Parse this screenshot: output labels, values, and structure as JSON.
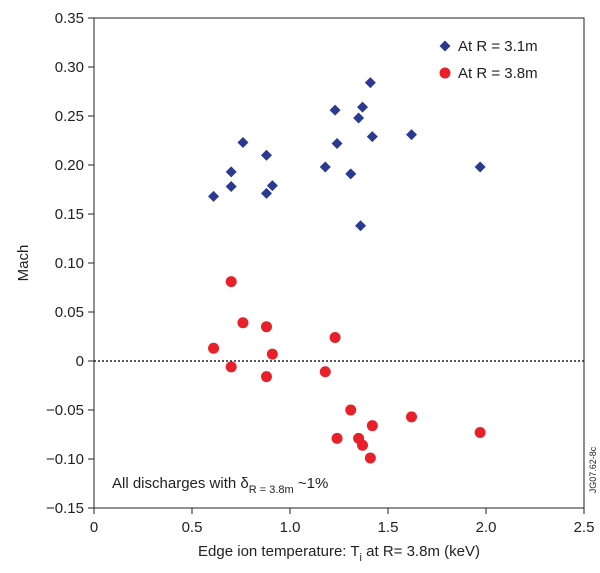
{
  "chart_data": {
    "type": "scatter",
    "y_label": "Mach",
    "x_label": {
      "text": "Edge ion temperature: T",
      "sub": "i",
      "rest": " at R= 3.8m (keV)"
    },
    "annotation": {
      "text": "All discharges with δ",
      "sub": "R = 3.8m",
      "rest": " ~1%"
    },
    "side_label": "JG07.62-8c",
    "xlim": [
      0,
      2.5
    ],
    "xticks": [
      0,
      0.5,
      {
        "value": 1,
        "label": "1.0"
      },
      1.5,
      {
        "value": 2,
        "label": "2.0"
      },
      2.5
    ],
    "ylim": [
      -0.15,
      0.35
    ],
    "yticks": [
      {
        "value": -0.15,
        "label": "−0.15"
      },
      {
        "value": -0.1,
        "label": "−0.10"
      },
      {
        "value": -0.05,
        "label": "−0.05"
      },
      0,
      0.05,
      {
        "value": 0.1,
        "label": "0.10"
      },
      0.15,
      {
        "value": 0.2,
        "label": "0.20"
      },
      0.25,
      {
        "value": 0.3,
        "label": "0.30"
      },
      0.35
    ],
    "zero_line": true,
    "legend": "top-right",
    "series": [
      {
        "name": "At R = 3.1m",
        "color": "#2b3990",
        "marker": "diamond",
        "x": [
          0.61,
          0.7,
          0.7,
          0.76,
          0.88,
          0.88,
          0.91,
          1.18,
          1.23,
          1.24,
          1.31,
          1.35,
          1.37,
          1.36,
          1.41,
          1.42,
          1.62,
          1.97
        ],
        "values": [
          0.168,
          0.178,
          0.193,
          0.223,
          0.21,
          0.171,
          0.179,
          0.198,
          0.256,
          0.222,
          0.191,
          0.248,
          0.259,
          0.138,
          0.284,
          0.229,
          0.231,
          0.198
        ]
      },
      {
        "name": "At R = 3.8m",
        "color": "#e8202a",
        "marker": "circle",
        "x": [
          0.7,
          0.61,
          0.7,
          0.76,
          0.88,
          0.91,
          0.88,
          1.18,
          1.23,
          1.31,
          1.24,
          1.35,
          1.37,
          1.42,
          1.41,
          1.62,
          1.97
        ],
        "values": [
          0.081,
          0.013,
          -0.006,
          0.039,
          0.035,
          0.007,
          -0.016,
          -0.011,
          0.024,
          -0.05,
          -0.079,
          -0.079,
          -0.086,
          -0.066,
          -0.099,
          -0.057,
          -0.073
        ]
      }
    ]
  }
}
